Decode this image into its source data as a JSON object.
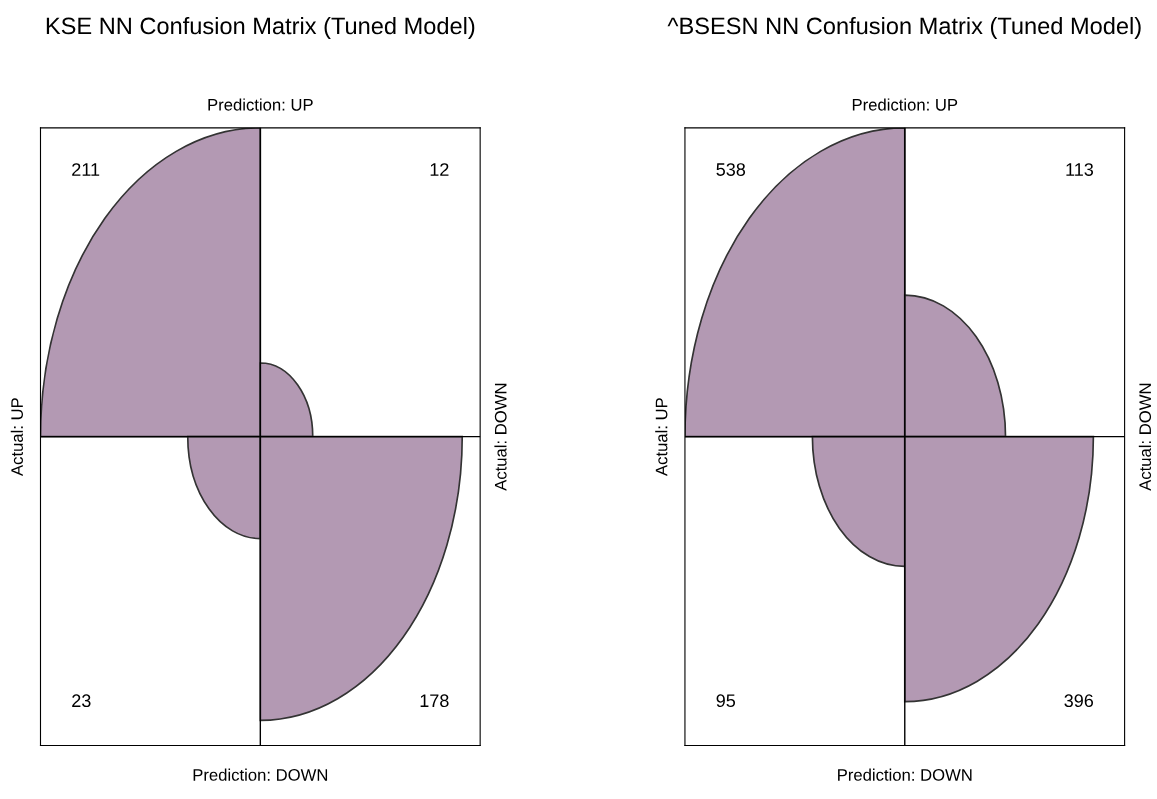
{
  "chart_data": [
    {
      "type": "other",
      "title": "KSE NN Confusion Matrix (Tuned Model)",
      "x2label": "Prediction: UP",
      "xlabel": "Prediction: DOWN",
      "ylabel": "Actual: UP",
      "y2label": "Actual: DOWN",
      "categories": [
        null,
        null,
        null,
        null
      ],
      "values": [
        211,
        12,
        23,
        178
      ],
      "data_labels": true,
      "color": "#b399b3"
    },
    {
      "type": "other",
      "title": "^BSESN NN Confusion Matrix (Tuned Model)",
      "x2label": "Prediction: UP",
      "xlabel": "Prediction: DOWN",
      "ylabel": "Actual: UP",
      "y2label": "Actual: DOWN",
      "categories": [
        null,
        null,
        null,
        null
      ],
      "values": [
        538,
        113,
        95,
        396
      ],
      "data_labels": true,
      "color": "#b399b3"
    }
  ]
}
